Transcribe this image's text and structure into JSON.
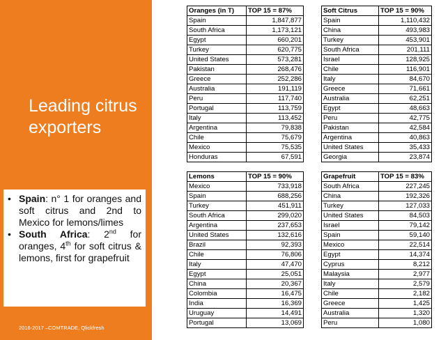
{
  "slide": {
    "title": "Leading citrus exporters",
    "source": "2016-2017 –COMTRADE, Qlickfresh",
    "notes": [
      {
        "bold": "Spain",
        "text": ": n° 1 for oranges and soft citrus and 2nd to Mexico for lemons/limes"
      },
      {
        "bold": "South Africa",
        "text1": ": 2",
        "sup1": "nd",
        "text2": " for oranges, 4",
        "sup2": "th",
        "text3": " for soft citrus & lemons, first for grapefruit"
      }
    ]
  },
  "tables": {
    "oranges": {
      "header": "Oranges (in T)",
      "top": "TOP 15 = 87%",
      "rows": [
        [
          "Spain",
          "1,847,877"
        ],
        [
          "South Africa",
          "1,173,121"
        ],
        [
          "Egypt",
          "660,201"
        ],
        [
          "Turkey",
          "620,775"
        ],
        [
          "United States",
          "573,281"
        ],
        [
          "Pakistan",
          "268,476"
        ],
        [
          "Greece",
          "252,286"
        ],
        [
          "Australia",
          "191,119"
        ],
        [
          "Peru",
          "117,740"
        ],
        [
          "Portugal",
          "113,759"
        ],
        [
          "Italy",
          "113,452"
        ],
        [
          "Argentina",
          "79,838"
        ],
        [
          "Chile",
          "75,679"
        ],
        [
          "Mexico",
          "75,535"
        ],
        [
          "Honduras",
          "67,591"
        ]
      ]
    },
    "soft_citrus": {
      "header": "Soft Citrus",
      "top": "TOP 15 = 90%",
      "rows": [
        [
          "Spain",
          "1,110,432"
        ],
        [
          "China",
          "493,983"
        ],
        [
          "Turkey",
          "453,901"
        ],
        [
          "South Africa",
          "201,111"
        ],
        [
          "Israel",
          "128,925"
        ],
        [
          "Chile",
          "116,901"
        ],
        [
          "Italy",
          "84,670"
        ],
        [
          "Greece",
          "71,661"
        ],
        [
          "Australia",
          "62,251"
        ],
        [
          "Egypt",
          "48,663"
        ],
        [
          "Peru",
          "42,775"
        ],
        [
          "Pakistan",
          "42,584"
        ],
        [
          "Argentina",
          "40,863"
        ],
        [
          "United States",
          "35,433"
        ],
        [
          "Georgia",
          "23,874"
        ]
      ]
    },
    "lemons": {
      "header": "Lemons",
      "top": "TOP 15 = 90%",
      "rows": [
        [
          "Mexico",
          "733,918"
        ],
        [
          "Spain",
          "688,256"
        ],
        [
          "Turkey",
          "451,911"
        ],
        [
          "South Africa",
          "299,020"
        ],
        [
          "Argentina",
          "237,653"
        ],
        [
          "United States",
          "132,616"
        ],
        [
          "Brazil",
          "92,393"
        ],
        [
          "Chile",
          "76,806"
        ],
        [
          "Italy",
          "47,470"
        ],
        [
          "Egypt",
          "25,051"
        ],
        [
          "China",
          "20,367"
        ],
        [
          "Colombia",
          "16,475"
        ],
        [
          "India",
          "16,369"
        ],
        [
          "Uruguay",
          "14,491"
        ],
        [
          "Portugal",
          "13,069"
        ]
      ]
    },
    "grapefruit": {
      "header": "Grapefruit",
      "top": "TOP 15 = 83%",
      "rows": [
        [
          "South Africa",
          "227,245"
        ],
        [
          "China",
          "192,326"
        ],
        [
          "Turkey",
          "127,033"
        ],
        [
          "United States",
          "84,503"
        ],
        [
          "Israel",
          "79,142"
        ],
        [
          "Spain",
          "59,140"
        ],
        [
          "Mexico",
          "22,514"
        ],
        [
          "Egypt",
          "14,374"
        ],
        [
          "Cyprus",
          "8,212"
        ],
        [
          "Malaysia",
          "2,977"
        ],
        [
          "Italy",
          "2,579"
        ],
        [
          "Chile",
          "2,182"
        ],
        [
          "Greece",
          "1,425"
        ],
        [
          "Australia",
          "1,320"
        ],
        [
          "Peru",
          "1,080"
        ]
      ]
    }
  },
  "colors": {
    "accent": "#ee7d1f",
    "panel_text": "#ffffff"
  }
}
